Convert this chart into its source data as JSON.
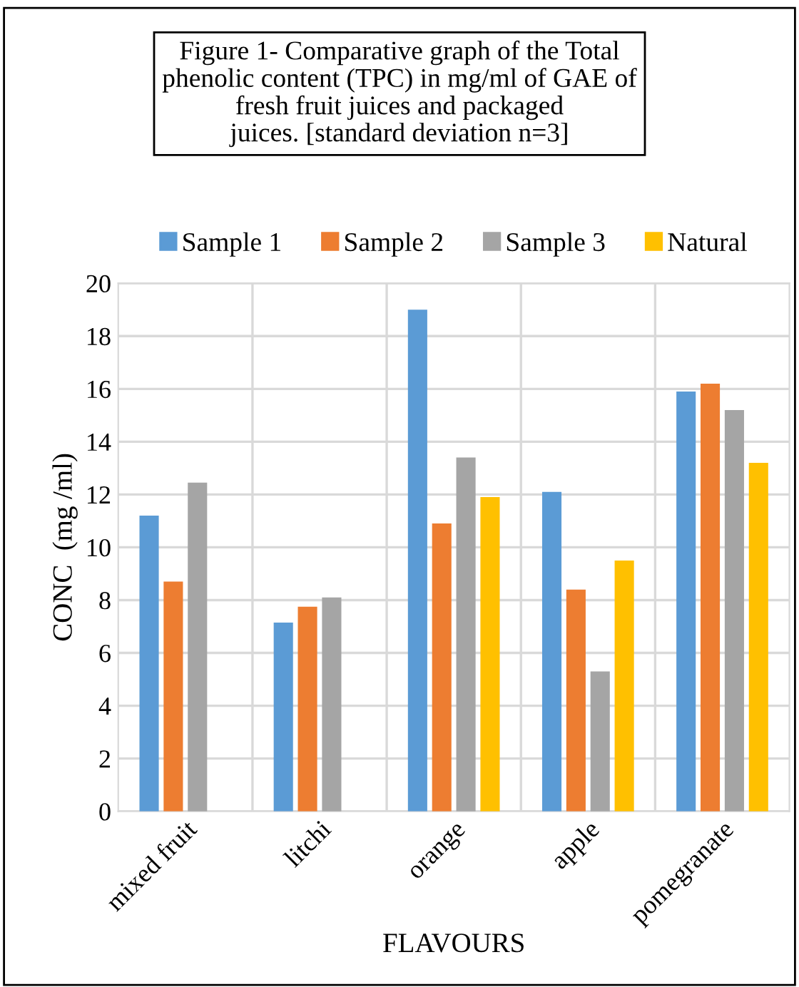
{
  "chart_data": {
    "type": "bar",
    "title": "Figure 1- Comparative graph of the Total\nphenolic content (TPC) in mg/ml of GAE of\nfresh fruit juices and packaged\njuices. [standard deviation n=3]",
    "xlabel": "FLAVOURS",
    "ylabel": "CONC  (mg /ml)",
    "categories": [
      "mixed fruit",
      "litchi",
      "orange",
      "apple",
      "pomegranate"
    ],
    "series": [
      {
        "name": "Sample 1",
        "color": "#5b9bd5",
        "values": [
          11.2,
          7.15,
          19.0,
          12.1,
          15.9
        ]
      },
      {
        "name": "Sample 2",
        "color": "#ed7d31",
        "values": [
          8.7,
          7.75,
          10.9,
          8.4,
          16.2
        ]
      },
      {
        "name": "Sample 3",
        "color": "#a5a5a5",
        "values": [
          12.45,
          8.1,
          13.4,
          5.3,
          15.2
        ]
      },
      {
        "name": "Natural",
        "color": "#ffc000",
        "values": [
          null,
          null,
          11.9,
          9.5,
          13.2
        ]
      }
    ],
    "ylim": [
      0,
      20
    ],
    "yticks": [
      0,
      2,
      4,
      6,
      8,
      10,
      12,
      14,
      16,
      18,
      20
    ],
    "grid": "y",
    "legend": "top"
  }
}
